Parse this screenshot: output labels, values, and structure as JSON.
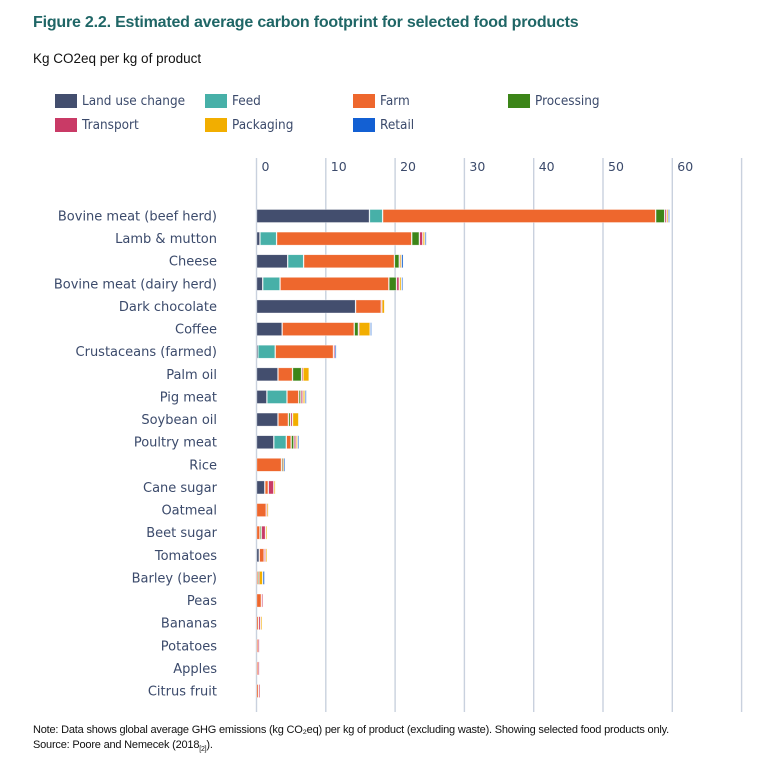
{
  "figure": {
    "title": "Figure 2.2. Estimated average carbon footprint for selected food products",
    "subtitle": "Kg CO2eq per kg of product",
    "note_line1": "Note: Data shows global average GHG emissions (kg CO₂eq) per kg of product (excluding waste). Showing selected food products only.",
    "source_prefix": "Source: Poore and Nemecek (2018",
    "source_ref": "[2]",
    "source_suffix": ")."
  },
  "legend": [
    {
      "key": "land_use_change",
      "label": "Land use change",
      "color": "#434E6E"
    },
    {
      "key": "feed",
      "label": "Feed",
      "color": "#47B0A8"
    },
    {
      "key": "farm",
      "label": "Farm",
      "color": "#EE672D"
    },
    {
      "key": "processing",
      "label": "Processing",
      "color": "#3C8518"
    },
    {
      "key": "transport",
      "label": "Transport",
      "color": "#C93A66"
    },
    {
      "key": "packaging",
      "label": "Packaging",
      "color": "#F2AE00"
    },
    {
      "key": "retail",
      "label": "Retail",
      "color": "#1360D3"
    }
  ],
  "chart_data": {
    "type": "bar",
    "orientation": "horizontal",
    "stacked": true,
    "title": "Figure 2.2. Estimated average carbon footprint for selected food products",
    "xlabel": "Kg CO2eq per kg of product",
    "ylabel": "",
    "xlim": [
      0,
      70
    ],
    "xticks": [
      0,
      10,
      20,
      30,
      40,
      50,
      60
    ],
    "grid": true,
    "legend_position": "top",
    "categories": [
      "Bovine meat (beef herd)",
      "Lamb & mutton",
      "Cheese",
      "Bovine meat (dairy herd)",
      "Dark chocolate",
      "Coffee",
      "Crustaceans (farmed)",
      "Palm oil",
      "Pig meat",
      "Soybean oil",
      "Poultry meat",
      "Rice",
      "Cane sugar",
      "Oatmeal",
      "Beet sugar",
      "Tomatoes",
      "Barley (beer)",
      "Peas",
      "Bananas",
      "Potatoes",
      "Apples",
      "Citrus fruit"
    ],
    "series": [
      {
        "name": "Land use change",
        "values": [
          16.3,
          0.5,
          4.5,
          0.9,
          14.3,
          3.7,
          0.2,
          3.1,
          1.5,
          3.1,
          2.5,
          0.0,
          1.2,
          0.0,
          0.0,
          0.4,
          0.0,
          0.0,
          -0.1,
          0.0,
          -0.03,
          -0.1
        ]
      },
      {
        "name": "Feed",
        "values": [
          1.9,
          2.4,
          2.3,
          2.5,
          0.0,
          0.0,
          2.5,
          0.0,
          2.9,
          0.0,
          1.8,
          0.0,
          0.0,
          0.0,
          0.0,
          0.0,
          0.0,
          0.0,
          0.0,
          0.0,
          0.0,
          0.0
        ]
      },
      {
        "name": "Farm",
        "values": [
          39.4,
          19.5,
          13.1,
          15.7,
          3.7,
          10.4,
          8.4,
          2.1,
          1.7,
          1.5,
          0.7,
          3.6,
          0.5,
          1.4,
          0.5,
          0.7,
          0.2,
          0.7,
          0.3,
          0.2,
          0.2,
          0.3
        ]
      },
      {
        "name": "Processing",
        "values": [
          1.3,
          1.1,
          0.7,
          1.1,
          0.0,
          0.6,
          0.0,
          1.3,
          0.3,
          0.3,
          0.4,
          0.1,
          0.0,
          0.0,
          0.2,
          0.0,
          0.1,
          0.0,
          0.0,
          0.0,
          0.0,
          0.0
        ]
      },
      {
        "name": "Transport",
        "values": [
          0.3,
          0.5,
          0.1,
          0.4,
          0.1,
          0.1,
          0.2,
          0.2,
          0.3,
          0.3,
          0.3,
          0.1,
          0.8,
          0.1,
          0.6,
          0.2,
          0.1,
          0.1,
          0.3,
          0.1,
          0.2,
          0.1
        ]
      },
      {
        "name": "Packaging",
        "values": [
          0.2,
          0.3,
          0.2,
          0.3,
          0.4,
          1.6,
          0.0,
          0.9,
          0.3,
          0.9,
          0.2,
          0.1,
          0.1,
          0.1,
          0.1,
          0.1,
          0.5,
          0.0,
          0.1,
          0.0,
          0.0,
          0.0
        ]
      },
      {
        "name": "Retail",
        "values": [
          0.2,
          0.2,
          0.3,
          0.2,
          0.0,
          0.1,
          0.2,
          0.0,
          0.2,
          0.0,
          0.2,
          0.1,
          0.0,
          0.0,
          0.0,
          0.0,
          0.3,
          0.0,
          0.0,
          0.0,
          0.0,
          0.0
        ]
      }
    ]
  }
}
